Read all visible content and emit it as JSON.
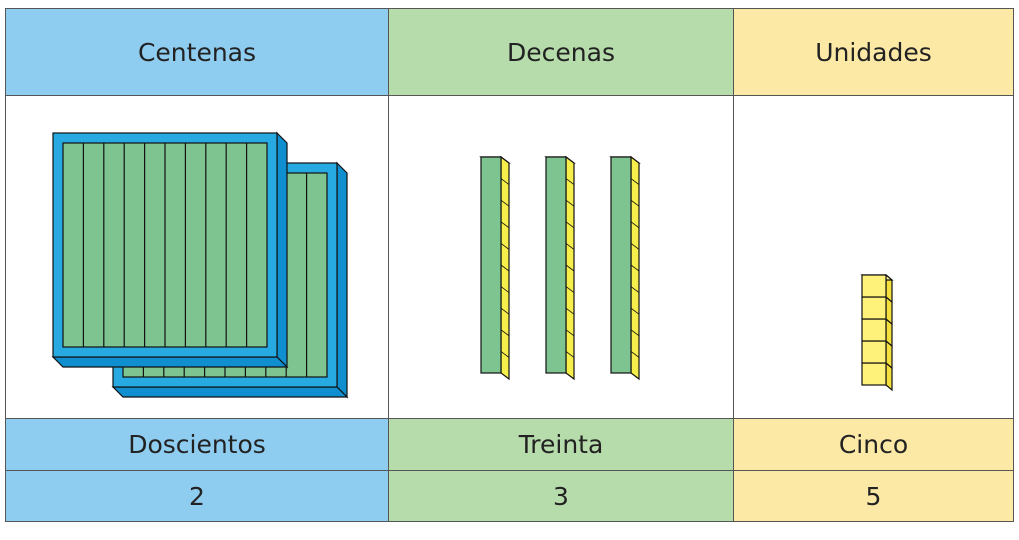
{
  "table": {
    "headers": [
      "Centenas",
      "Decenas",
      "Unidades"
    ],
    "rows": [
      [
        "Doscientos",
        "Treinta",
        "Cinco"
      ],
      [
        2,
        3,
        5
      ]
    ]
  }
}
